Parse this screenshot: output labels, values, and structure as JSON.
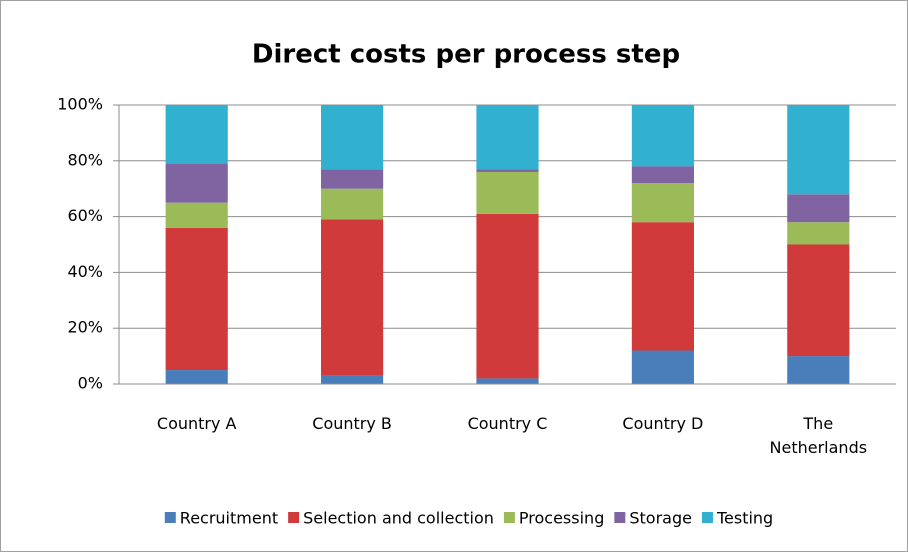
{
  "chart_data": {
    "type": "stacked_bar",
    "title": "Direct costs per process step",
    "categories": [
      "Country A",
      "Country B",
      "Country C",
      "Country D",
      "The Netherlands"
    ],
    "series": [
      {
        "name": "Recruitment",
        "color": "#4a7ebb",
        "values": [
          5,
          3,
          2,
          12,
          10
        ]
      },
      {
        "name": "Selection and collection",
        "color": "#d03a3a",
        "values": [
          51,
          56,
          59,
          46,
          40
        ]
      },
      {
        "name": "Processing",
        "color": "#9bbb59",
        "values": [
          9,
          11,
          15,
          14,
          8
        ]
      },
      {
        "name": "Storage",
        "color": "#8064a2",
        "values": [
          14,
          7,
          1,
          6,
          10
        ]
      },
      {
        "name": "Testing",
        "color": "#31b0d0",
        "values": [
          21,
          23,
          23,
          22,
          32
        ]
      }
    ],
    "ylim": [
      0,
      100
    ],
    "yticks": [
      {
        "value": 0,
        "label": "0%"
      },
      {
        "value": 20,
        "label": "20%"
      },
      {
        "value": 40,
        "label": "40%"
      },
      {
        "value": 60,
        "label": "60%"
      },
      {
        "value": 80,
        "label": "80%"
      },
      {
        "value": 100,
        "label": "100%"
      }
    ],
    "grid": true,
    "legend": "bottom"
  }
}
